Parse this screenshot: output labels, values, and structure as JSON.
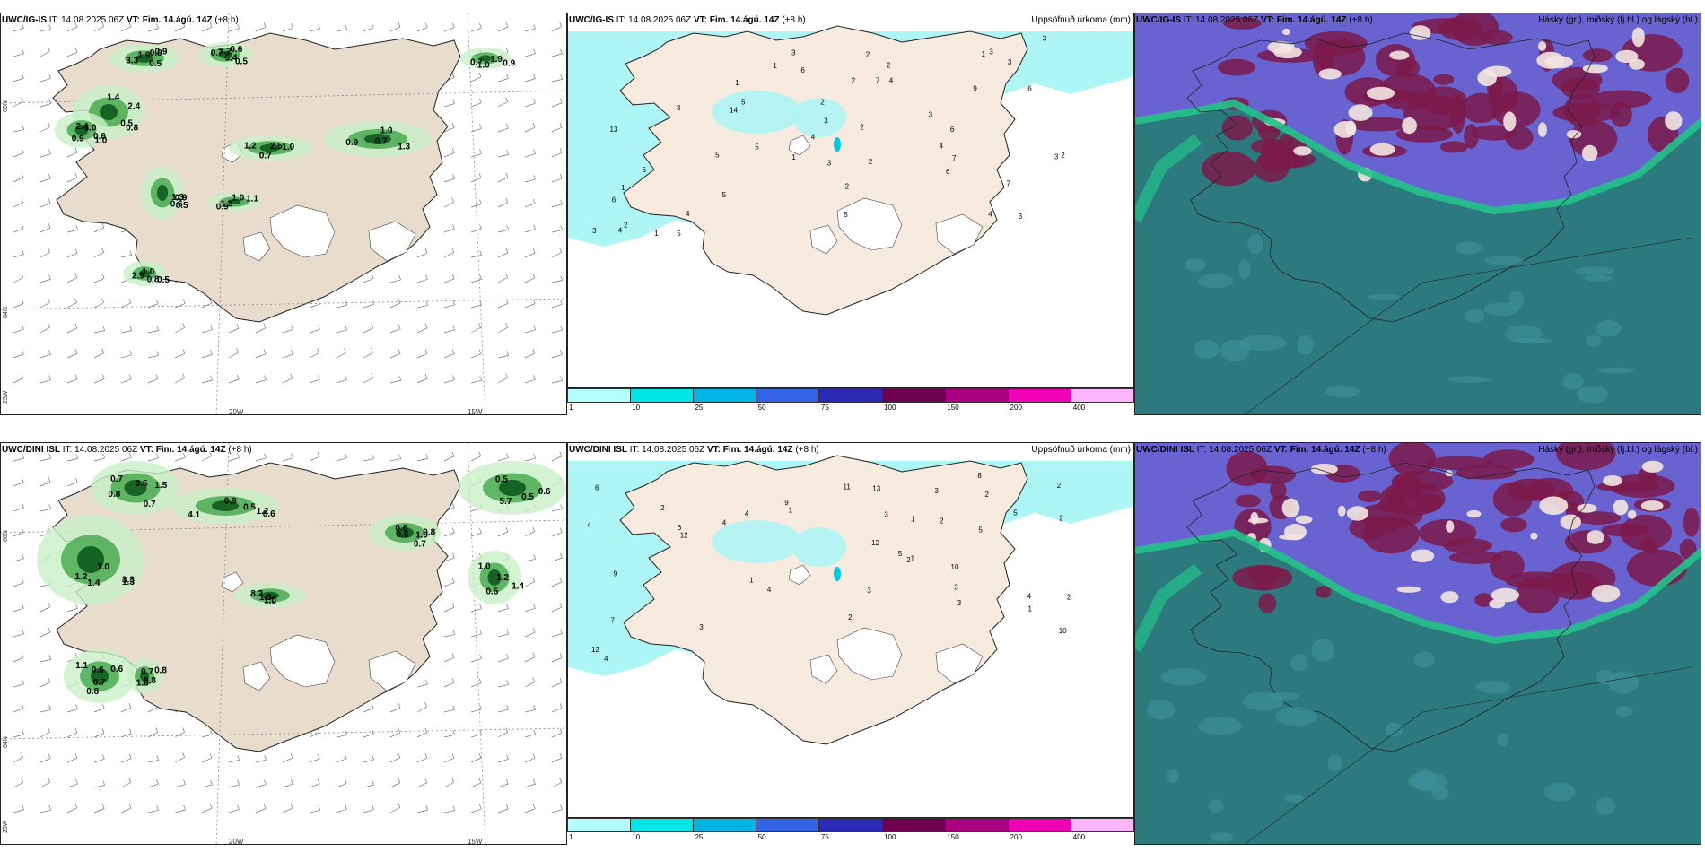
{
  "rows": [
    {
      "model": "UWC/IG-IS",
      "it_label": "IT:",
      "it_value": "14.08.2025 06Z",
      "vt_label": "VT:",
      "vt_value": "Fim. 14.ágú. 14Z",
      "lead": "(+8 h)",
      "precip_title": "Uppsöfnuð úrkoma (mm)",
      "cloud_title": "Háský (gr.), miðský (fj.bl.) og lágský (bl.)",
      "left_values": [
        "1.9",
        "5.4",
        "3.0",
        "2.4",
        "0.6",
        "2.5",
        "1.0",
        "0.9",
        "1.0",
        "1.0",
        "0.9",
        "0.7",
        "2.4",
        "1.0",
        "0.9",
        "1.0",
        "0.9",
        "1.3",
        "2.9",
        "1.9",
        "3.3",
        "2.2",
        "0.8",
        "0.9",
        "1.3",
        "1.2",
        "1.3",
        "1.1",
        "0.8",
        "0.7",
        "0.9",
        "0.5",
        "1.4",
        "0.6",
        "0.5",
        "0.7",
        "0.7",
        "1.0",
        "0.5",
        "0.9",
        "0.5",
        "0.6",
        "0.5"
      ],
      "precip_values": [
        "2",
        "3",
        "7",
        "5",
        "6",
        "4",
        "5",
        "3",
        "4",
        "5",
        "6",
        "3",
        "2",
        "3",
        "7",
        "6",
        "5",
        "4",
        "3",
        "6",
        "2",
        "4",
        "13",
        "5",
        "6",
        "4",
        "3",
        "2",
        "14",
        "9",
        "2",
        "1",
        "3",
        "5",
        "4",
        "3",
        "6",
        "7",
        "2",
        "1",
        "3",
        "2",
        "1",
        "1",
        "3",
        "2",
        "1",
        "2",
        "1",
        "3"
      ]
    },
    {
      "model": "UWC/DINI ISL",
      "it_label": "IT:",
      "it_value": "14.08.2025 06Z",
      "vt_label": "VT:",
      "vt_value": "Fim. 14.ágú. 14Z",
      "lead": "(+8 h)",
      "precip_title": "Uppsöfnuð úrkoma (mm)",
      "cloud_title": "Háský (gr.), miðský (fj.bl.) og lágský (bl.)",
      "left_values": [
        "0.8",
        "4.1",
        "3.3",
        "0.7",
        "0.7",
        "5.7",
        "8.2",
        "0.8",
        "1.0",
        "0.7",
        "0.6",
        "1.4",
        "0.8",
        "0.6",
        "0.6",
        "1.3",
        "1.0",
        "1.2",
        "0.7",
        "1.2",
        "1.3",
        "1.1",
        "0.8",
        "0.5",
        "1.0",
        "0.7",
        "1.4",
        "0.5",
        "0.5",
        "1.2",
        "0.6",
        "0.6",
        "0.5",
        "1.0",
        "0.8",
        "0.5",
        "1.5",
        "0.9",
        "1.0",
        "0.6",
        "1.0"
      ],
      "precip_values": [
        "4",
        "3",
        "9",
        "9",
        "12",
        "7",
        "8",
        "12",
        "13",
        "11",
        "10",
        "12",
        "4",
        "6",
        "5",
        "4",
        "3",
        "2",
        "10",
        "6",
        "5",
        "4",
        "3",
        "2",
        "1",
        "3",
        "2",
        "1",
        "2",
        "1",
        "2",
        "1",
        "3",
        "2",
        "2",
        "4",
        "3",
        "5",
        "4",
        "1",
        "2"
      ]
    }
  ],
  "axis_labels": {
    "lon_20": "20W",
    "lon_15": "15W",
    "lat_66": "66N",
    "lat_64": "64N",
    "lon_25": "25W"
  },
  "colorbar": {
    "ticks": [
      "1",
      "10",
      "25",
      "50",
      "75",
      "100",
      "150",
      "200",
      "400"
    ],
    "colors": [
      "#b3ffff",
      "#00e6e6",
      "#00b4e6",
      "#3264e6",
      "#2a2ab4",
      "#6e0050",
      "#aa0082",
      "#f000b4",
      "#ffb4ff"
    ]
  },
  "colors": {
    "land": "#e8dccd",
    "land_light": "#f7ebe0",
    "precip_light": "#aef5f5",
    "cloud_sea": "#2d7a7e",
    "cloud_high": "#7b1a4a",
    "cloud_mid": "#4f47c9",
    "cloud_low": "#22c28a"
  }
}
